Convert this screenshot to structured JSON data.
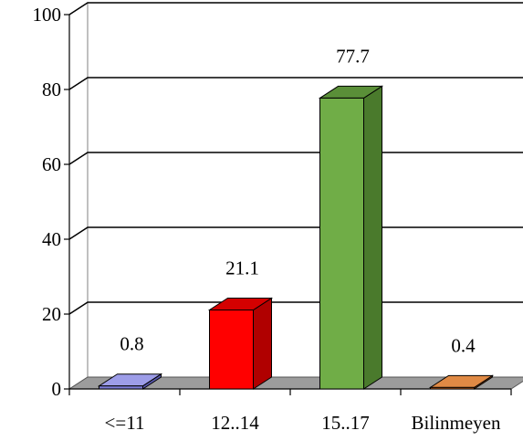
{
  "chart_data": {
    "type": "bar",
    "categories": [
      "<=11",
      "12..14",
      "15..17",
      "Bilinmeyen"
    ],
    "values": [
      0.8,
      21.1,
      77.7,
      0.4
    ],
    "data_labels": [
      "0.8",
      "21.1",
      "77.7",
      "0.4"
    ],
    "y_ticks": [
      "0",
      "20",
      "40",
      "60",
      "80",
      "100"
    ],
    "ylim": [
      0,
      100
    ],
    "grid": true,
    "three_d": true,
    "title": "",
    "xlabel": "",
    "ylabel": "",
    "colors": {
      "bars": [
        "#7b7bd6",
        "#ff0000",
        "#70ad47",
        "#d2691e"
      ],
      "bar_tops": [
        "#9d9de8",
        "#d40000",
        "#5a8f38",
        "#e08a45"
      ],
      "bar_sides": [
        "#5a5ab0",
        "#b00000",
        "#4a7a2c",
        "#a0501a"
      ],
      "floor": "#9c9c9c",
      "grid": "#000000",
      "wall": "#ffffff"
    }
  }
}
